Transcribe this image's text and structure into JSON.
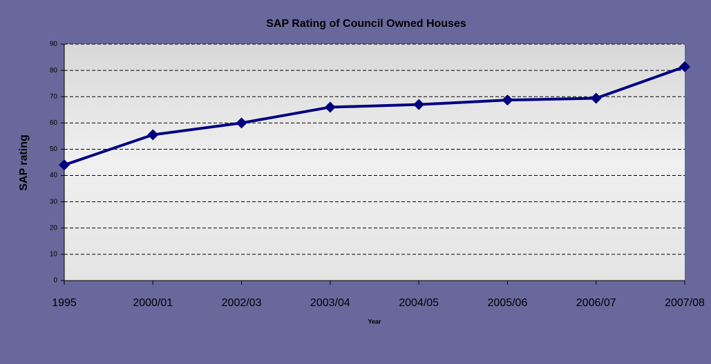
{
  "chart_data": {
    "type": "line",
    "title": "SAP Rating of Council Owned Houses",
    "x_label": "Year",
    "y_label": "SAP rating",
    "categories": [
      "1995",
      "2000/01",
      "2002/03",
      "2003/04",
      "2004/05",
      "2005/06",
      "2006/07",
      "2007/08"
    ],
    "series": [
      {
        "name": "SAP rating",
        "color": "#000080",
        "values": [
          44,
          55.5,
          60,
          66,
          67,
          68.7,
          69.4,
          81.4
        ]
      }
    ],
    "ylim": [
      0,
      90
    ],
    "yticks": [
      0,
      10,
      20,
      30,
      40,
      50,
      60,
      70,
      80,
      90
    ],
    "grid": true
  }
}
